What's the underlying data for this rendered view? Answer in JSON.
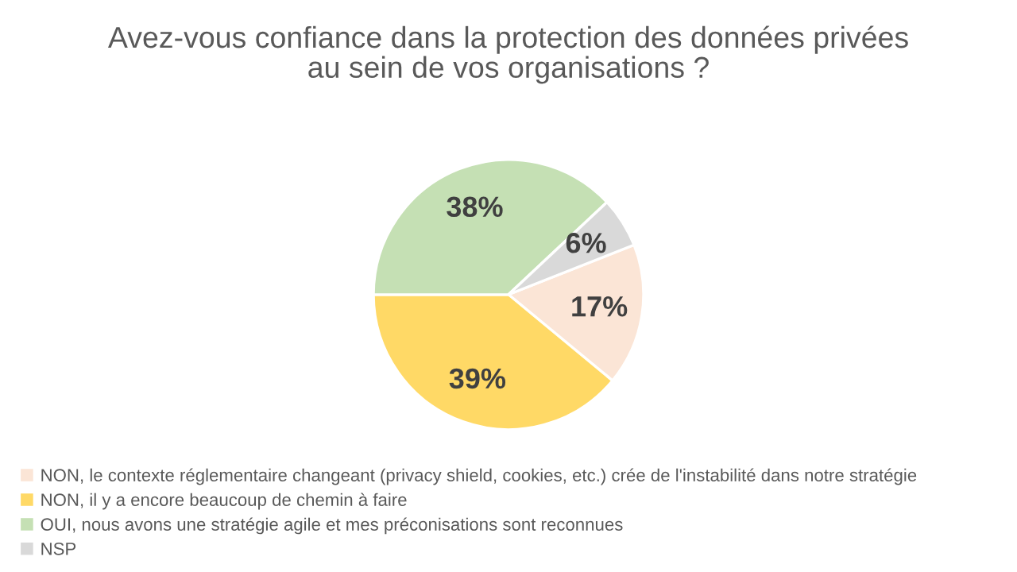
{
  "chart_data": {
    "type": "pie",
    "title": "Avez-vous confiance dans la protection des données privées\nau sein de vos organisations ?",
    "categories": [
      "NON, le contexte réglementaire changeant (privacy shield, cookies, etc.) crée de l'instabilité dans notre stratégie",
      "NON, il y a encore beaucoup de chemin à faire",
      "OUI, nous avons une stratégie agile et mes préconisations sont reconnues",
      "NSP"
    ],
    "values": [
      17,
      39,
      38,
      6
    ],
    "colors": [
      "#fbe5d6",
      "#ffd966",
      "#c5e0b4",
      "#d9d9d9"
    ],
    "value_labels": [
      "17%",
      "39%",
      "38%",
      "6%"
    ],
    "legend": "bottom"
  }
}
